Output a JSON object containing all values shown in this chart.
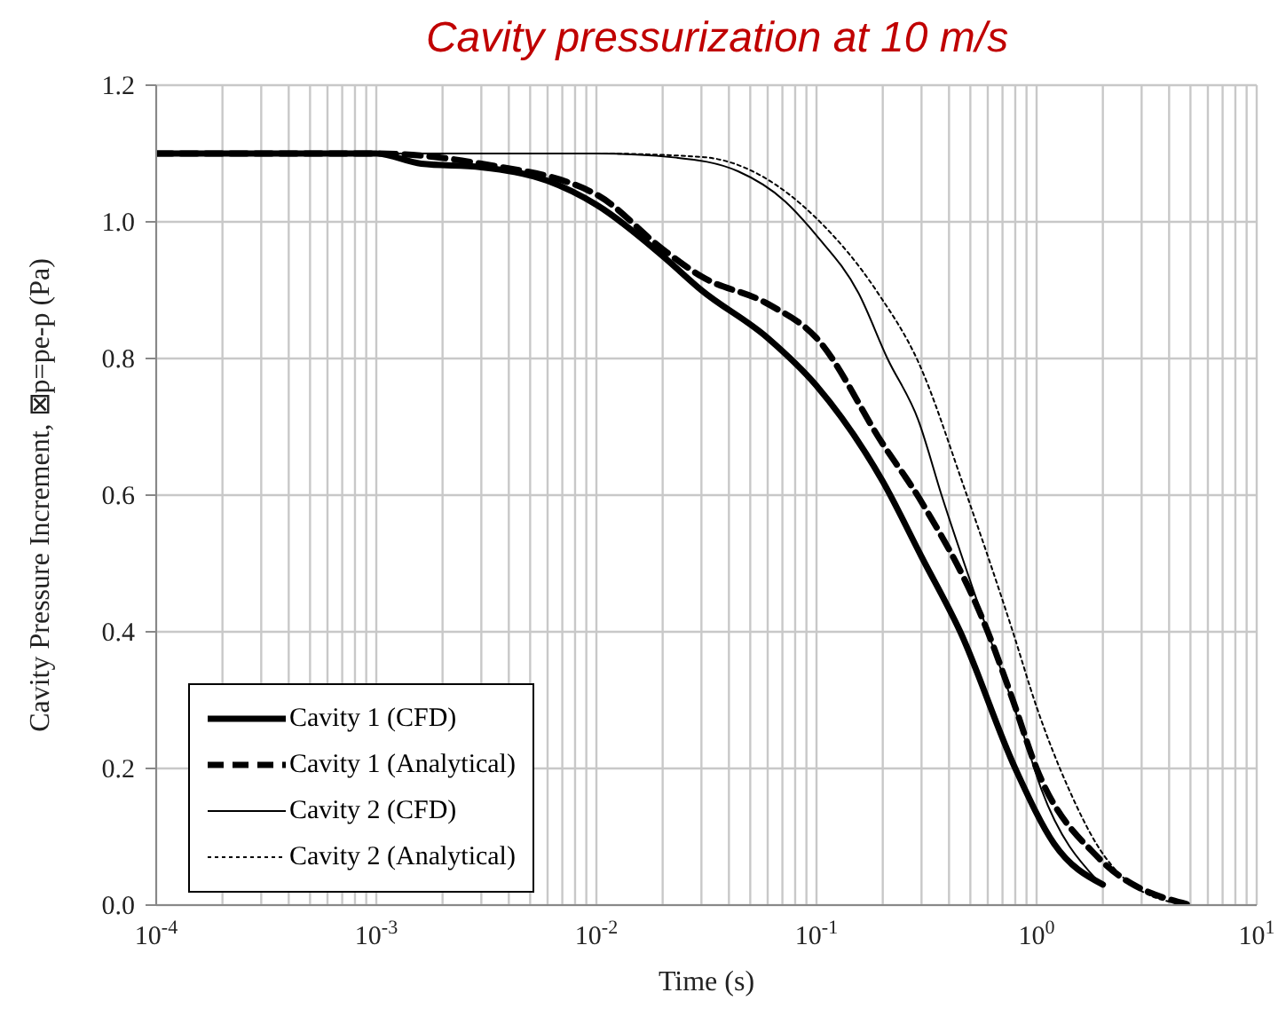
{
  "chart_data": {
    "type": "line",
    "title": "Cavity pressurization at 10 m/s",
    "xlabel": "Time (s)",
    "ylabel": "Cavity Pressure Increment, ⊠p=pe-p (Pa)",
    "log": "x",
    "grid": true,
    "legend": "bottom left",
    "marker": "none",
    "xlim": [
      0.0001,
      10
    ],
    "ylim": [
      0,
      1.2
    ],
    "xticks": [
      {
        "value": 0.0001,
        "label": "10$^{-4}$"
      },
      {
        "value": 0.0002,
        "label": null
      },
      {
        "value": 0.0003,
        "label": null
      },
      {
        "value": 0.0004,
        "label": null
      },
      {
        "value": 0.0005,
        "label": null
      },
      {
        "value": 0.0006,
        "label": null
      },
      {
        "value": 0.0007,
        "label": null
      },
      {
        "value": 0.0008,
        "label": null
      },
      {
        "value": 0.0009,
        "label": null
      },
      {
        "value": 0.001,
        "label": "10$^{-3}$"
      },
      {
        "value": 0.002,
        "label": null
      },
      {
        "value": 0.003,
        "label": null
      },
      {
        "value": 0.004,
        "label": null
      },
      {
        "value": 0.005,
        "label": null
      },
      {
        "value": 0.006,
        "label": null
      },
      {
        "value": 0.007,
        "label": null
      },
      {
        "value": 0.008,
        "label": null
      },
      {
        "value": 0.009,
        "label": null
      },
      {
        "value": 0.01,
        "label": "10$^{-2}$"
      },
      {
        "value": 0.02,
        "label": null
      },
      {
        "value": 0.03,
        "label": null
      },
      {
        "value": 0.04,
        "label": null
      },
      {
        "value": 0.05,
        "label": null
      },
      {
        "value": 0.06,
        "label": null
      },
      {
        "value": 0.07,
        "label": null
      },
      {
        "value": 0.08,
        "label": null
      },
      {
        "value": 0.09,
        "label": null
      },
      {
        "value": 0.1,
        "label": "10$^{-1}$"
      },
      {
        "value": 0.2,
        "label": null
      },
      {
        "value": 0.3,
        "label": null
      },
      {
        "value": 0.4,
        "label": null
      },
      {
        "value": 0.5,
        "label": null
      },
      {
        "value": 0.6,
        "label": null
      },
      {
        "value": 0.7,
        "label": null
      },
      {
        "value": 0.8,
        "label": null
      },
      {
        "value": 0.9,
        "label": null
      },
      {
        "value": 1,
        "label": "10$^{0}$"
      },
      {
        "value": 2,
        "label": null
      },
      {
        "value": 3,
        "label": null
      },
      {
        "value": 4,
        "label": null
      },
      {
        "value": 5,
        "label": null
      },
      {
        "value": 6,
        "label": null
      },
      {
        "value": 7,
        "label": null
      },
      {
        "value": 8,
        "label": null
      },
      {
        "value": 9,
        "label": null
      },
      {
        "value": 10,
        "label": "10$^{1}$"
      }
    ],
    "yticks": [
      {
        "value": 0,
        "label": "0.0"
      },
      {
        "value": 0.2,
        "label": "0.2"
      },
      {
        "value": 0.4,
        "label": "0.4"
      },
      {
        "value": 0.6,
        "label": "0.6"
      },
      {
        "value": 0.8,
        "label": "0.8"
      },
      {
        "value": 1,
        "label": "1.0"
      },
      {
        "value": 1.2,
        "label": "1.2"
      }
    ],
    "series": [
      {
        "name": "Cavity 1 (CFD)",
        "color": "#000000",
        "line_style": "solid",
        "x": [
          0.0001,
          0.001,
          0.0016,
          0.003,
          0.006,
          0.01,
          0.02,
          0.03,
          0.06,
          0.1,
          0.2,
          0.3,
          0.45,
          0.8,
          1.2,
          2
        ],
        "values": [
          1.1,
          1.1,
          1.085,
          1.08,
          1.06,
          1.025,
          0.95,
          0.9,
          0.83,
          0.76,
          0.62,
          0.51,
          0.4,
          0.2,
          0.09,
          0.03
        ]
      },
      {
        "name": "Cavity 1 (Analytical)",
        "color": "#000000",
        "line_style": "dashed",
        "x": [
          0.0001,
          0.001,
          0.003,
          0.01,
          0.02,
          0.03,
          0.06,
          0.1,
          0.2,
          0.3,
          0.6,
          0.78,
          1,
          1.9,
          5
        ],
        "values": [
          1.1,
          1.1,
          1.085,
          1.04,
          0.96,
          0.92,
          0.88,
          0.83,
          0.675,
          0.59,
          0.4,
          0.3,
          0.2,
          0.07,
          0
        ]
      },
      {
        "name": "Cavity 2 (CFD)",
        "color": "#000000",
        "line_style": "solid",
        "x": [
          0.0001,
          0.01,
          0.023,
          0.044,
          0.072,
          0.1,
          0.155,
          0.21,
          0.29,
          0.37,
          0.6,
          0.87,
          1.05,
          1.9
        ],
        "values": [
          1.1,
          1.1,
          1.094,
          1.074,
          1.03,
          0.98,
          0.896,
          0.8,
          0.71,
          0.6,
          0.4,
          0.25,
          0.17,
          0.035
        ]
      },
      {
        "name": "Cavity 2 (Analytical)",
        "color": "#000000",
        "line_style": "dotted",
        "x": [
          0.0001,
          0.01,
          0.03,
          0.1,
          0.19,
          0.29,
          0.47,
          0.78,
          1,
          1.4,
          1.9,
          3.1,
          5
        ],
        "values": [
          1.1,
          1.1,
          1.095,
          1.005,
          0.896,
          0.795,
          0.61,
          0.4,
          0.29,
          0.17,
          0.086,
          0.018,
          0
        ]
      }
    ]
  }
}
